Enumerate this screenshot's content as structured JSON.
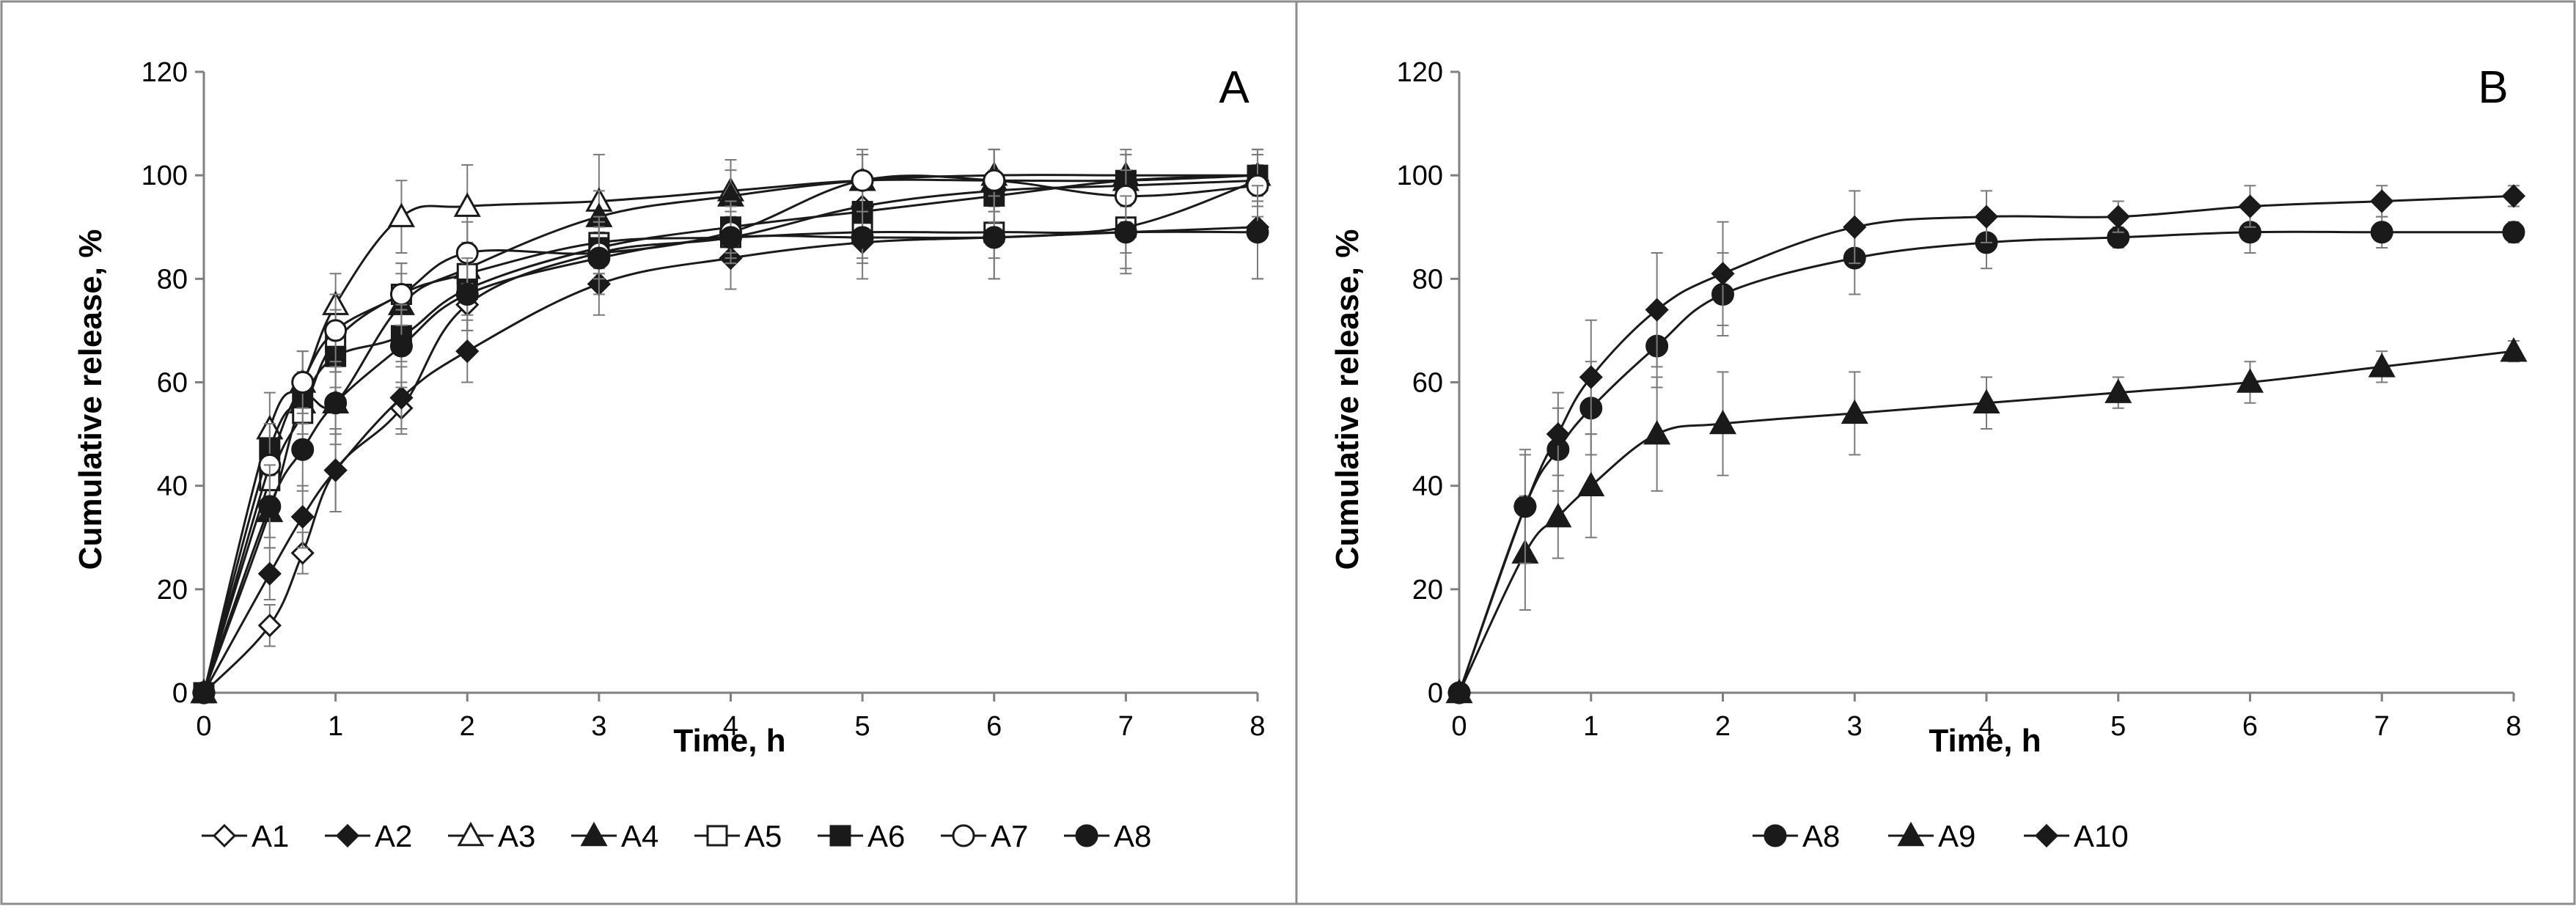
{
  "chart_data": [
    {
      "type": "line",
      "panel_label": "A",
      "xlabel": "Time, h",
      "ylabel": "Cumulative release, %",
      "xlim": [
        0,
        8
      ],
      "ylim": [
        0,
        120
      ],
      "x_ticks": [
        "0",
        "1",
        "2",
        "3",
        "4",
        "5",
        "6",
        "7",
        "8"
      ],
      "y_ticks": [
        "0",
        "20",
        "40",
        "60",
        "80",
        "100",
        "120"
      ],
      "x": [
        0,
        0.5,
        0.75,
        1,
        1.5,
        2,
        3,
        4,
        5,
        6,
        7,
        8
      ],
      "legend_position": "bottom",
      "series": [
        {
          "name": "A1",
          "marker": "diamond-open",
          "values": [
            0,
            13,
            27,
            43,
            55,
            75,
            85,
            88,
            94,
            97,
            98,
            99
          ],
          "errors": [
            0,
            4,
            4,
            8,
            5,
            5,
            4,
            4,
            4,
            3,
            3,
            3
          ]
        },
        {
          "name": "A2",
          "marker": "diamond-filled",
          "values": [
            0,
            23,
            34,
            43,
            57,
            66,
            79,
            84,
            87,
            88,
            89,
            90
          ],
          "errors": [
            0,
            5,
            6,
            8,
            6,
            6,
            6,
            6,
            7,
            8,
            8,
            10
          ]
        },
        {
          "name": "A3",
          "marker": "triangle-open",
          "values": [
            0,
            51,
            60,
            75,
            92,
            94,
            95,
            97,
            99,
            99,
            99,
            100
          ],
          "errors": [
            0,
            7,
            6,
            6,
            7,
            8,
            9,
            6,
            5,
            6,
            5,
            5
          ]
        },
        {
          "name": "A4",
          "marker": "triangle-filled",
          "values": [
            0,
            35,
            56,
            56,
            75,
            82,
            92,
            96,
            99,
            100,
            100,
            100
          ],
          "errors": [
            0,
            5,
            6,
            6,
            6,
            5,
            5,
            5,
            5,
            5,
            5,
            5
          ]
        },
        {
          "name": "A5",
          "marker": "square-open",
          "values": [
            0,
            41,
            54,
            68,
            77,
            81,
            87,
            88,
            89,
            89,
            90,
            99
          ],
          "errors": [
            0,
            6,
            6,
            6,
            6,
            5,
            5,
            5,
            5,
            5,
            5,
            5
          ]
        },
        {
          "name": "A6",
          "marker": "square-filled",
          "values": [
            0,
            47,
            57,
            65,
            69,
            78,
            86,
            90,
            93,
            96,
            99,
            100
          ],
          "errors": [
            0,
            5,
            5,
            6,
            5,
            5,
            5,
            5,
            5,
            5,
            5,
            5
          ]
        },
        {
          "name": "A7",
          "marker": "circle-open",
          "values": [
            0,
            44,
            60,
            70,
            77,
            85,
            85,
            89,
            99,
            99,
            96,
            98
          ],
          "errors": [
            0,
            8,
            6,
            7,
            6,
            6,
            5,
            5,
            6,
            6,
            5,
            6
          ]
        },
        {
          "name": "A8",
          "marker": "circle-filled",
          "values": [
            0,
            36,
            47,
            56,
            67,
            77,
            84,
            88,
            88,
            88,
            89,
            89
          ],
          "errors": [
            0,
            8,
            8,
            8,
            8,
            7,
            7,
            5,
            5,
            8,
            7,
            9
          ]
        }
      ]
    },
    {
      "type": "line",
      "panel_label": "B",
      "xlabel": "Time, h",
      "ylabel": "Cumulative release, %",
      "xlim": [
        0,
        8
      ],
      "ylim": [
        0,
        120
      ],
      "x_ticks": [
        "0",
        "1",
        "2",
        "3",
        "4",
        "5",
        "6",
        "7",
        "8"
      ],
      "y_ticks": [
        "0",
        "20",
        "40",
        "60",
        "80",
        "100",
        "120"
      ],
      "x": [
        0,
        0.5,
        0.75,
        1,
        1.5,
        2,
        3,
        4,
        5,
        6,
        7,
        8
      ],
      "legend_position": "bottom",
      "series": [
        {
          "name": "A8",
          "marker": "circle-filled",
          "values": [
            0,
            36,
            47,
            55,
            67,
            77,
            84,
            87,
            88,
            89,
            89,
            89
          ],
          "errors": [
            0,
            10,
            8,
            9,
            8,
            8,
            7,
            5,
            2,
            4,
            3,
            2
          ]
        },
        {
          "name": "A9",
          "marker": "triangle-filled",
          "values": [
            0,
            27,
            34,
            40,
            50,
            52,
            54,
            56,
            58,
            60,
            63,
            66
          ],
          "errors": [
            0,
            11,
            8,
            10,
            11,
            10,
            8,
            5,
            3,
            4,
            3,
            2
          ]
        },
        {
          "name": "A10",
          "marker": "diamond-filled",
          "values": [
            0,
            36,
            50,
            61,
            74,
            81,
            90,
            92,
            92,
            94,
            95,
            96
          ],
          "errors": [
            0,
            11,
            8,
            11,
            11,
            10,
            7,
            5,
            3,
            4,
            3,
            2
          ]
        }
      ]
    }
  ]
}
